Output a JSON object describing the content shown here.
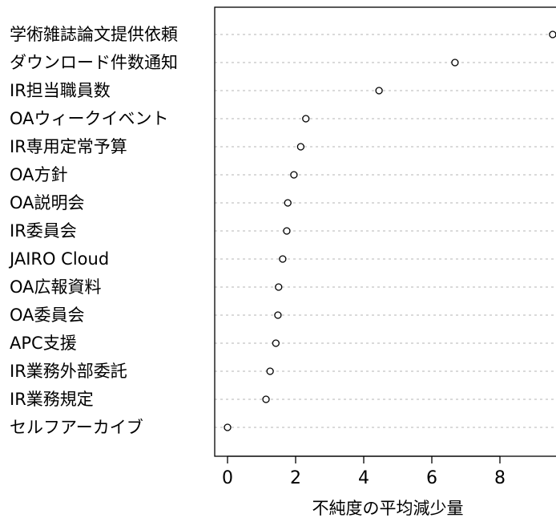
{
  "chart_data": {
    "type": "scatter",
    "categories": [
      "学術雑誌論文提供依頼",
      "ダウンロード件数通知",
      "IR担当職員数",
      "OAウィークイベント",
      "IR専用定常予算",
      "OA方針",
      "OA説明会",
      "IR委員会",
      "JAIRO Cloud",
      "OA広報資料",
      "OA委員会",
      "APC支援",
      "IR業務外部委託",
      "IR業務規定",
      "セルフアーカイブ"
    ],
    "values": [
      9.55,
      6.68,
      4.45,
      2.3,
      2.15,
      1.95,
      1.77,
      1.74,
      1.62,
      1.5,
      1.48,
      1.42,
      1.25,
      1.13,
      0.0
    ],
    "xlabel": "不純度の平均減少量",
    "ylabel": "",
    "xlim": [
      -0.4,
      9.9
    ],
    "xticks": [
      "0",
      "2",
      "4",
      "6",
      "8"
    ],
    "grid": "horizontal dotted",
    "legend": "none"
  }
}
